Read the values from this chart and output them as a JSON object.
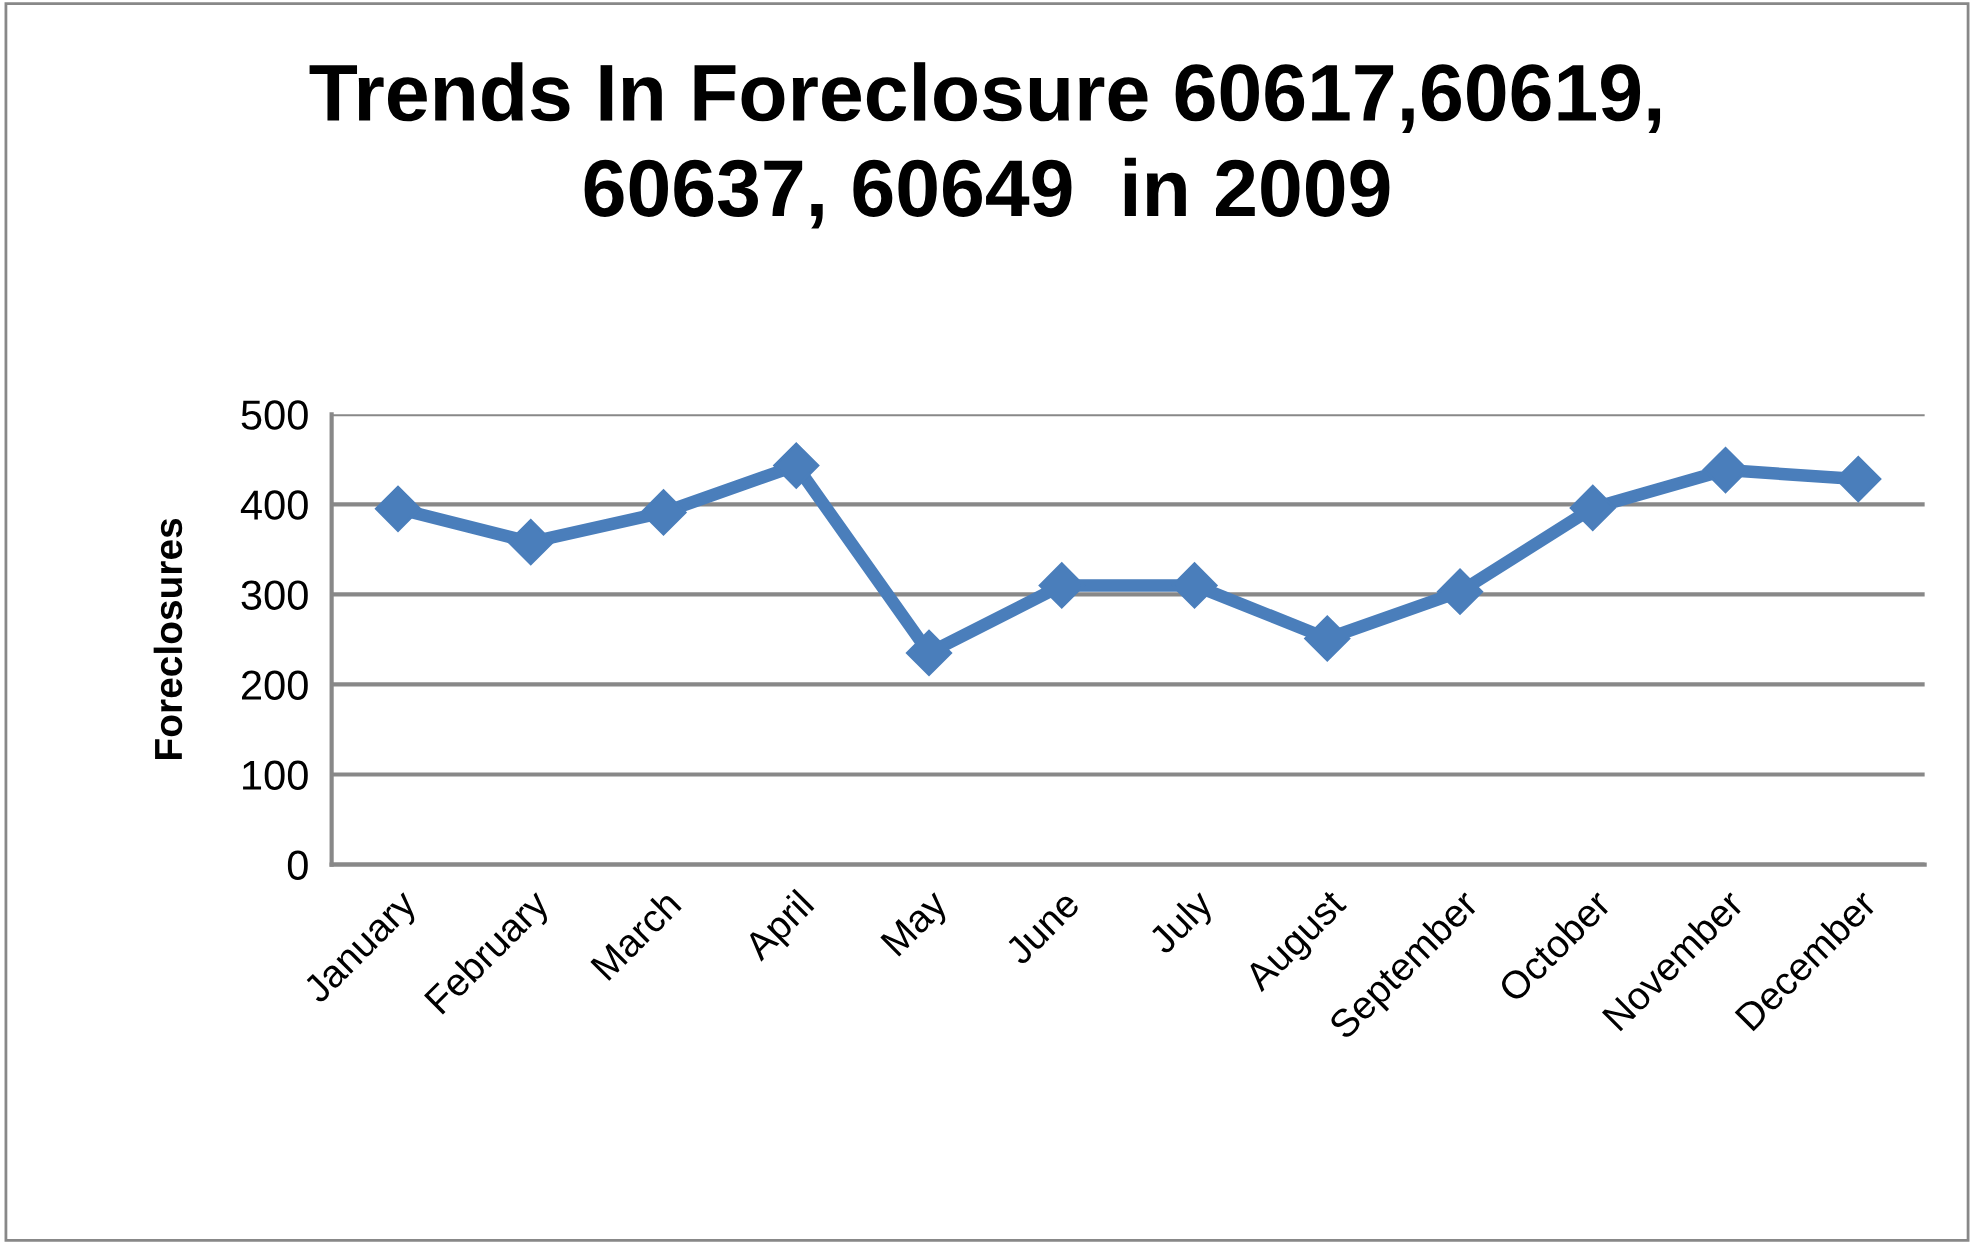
{
  "chart_data": {
    "type": "line",
    "title": "Trends In Foreclosure 60617,60619,\n60637, 60649  in 2009",
    "ylabel": "Foreclosures",
    "categories": [
      "January",
      "February",
      "March",
      "April",
      "May",
      "June",
      "July",
      "August",
      "September",
      "October",
      "November",
      "December"
    ],
    "series": [
      {
        "color": "#4a7ebb",
        "values": [
          395,
          358,
          391,
          443,
          235,
          310,
          310,
          251,
          303,
          396,
          438,
          428
        ]
      }
    ],
    "ylim": [
      0,
      500
    ],
    "yticks": [
      0,
      100,
      200,
      300,
      400,
      500
    ],
    "grid": "y",
    "legend": false,
    "marker": "diamond",
    "line_style": "solid"
  }
}
